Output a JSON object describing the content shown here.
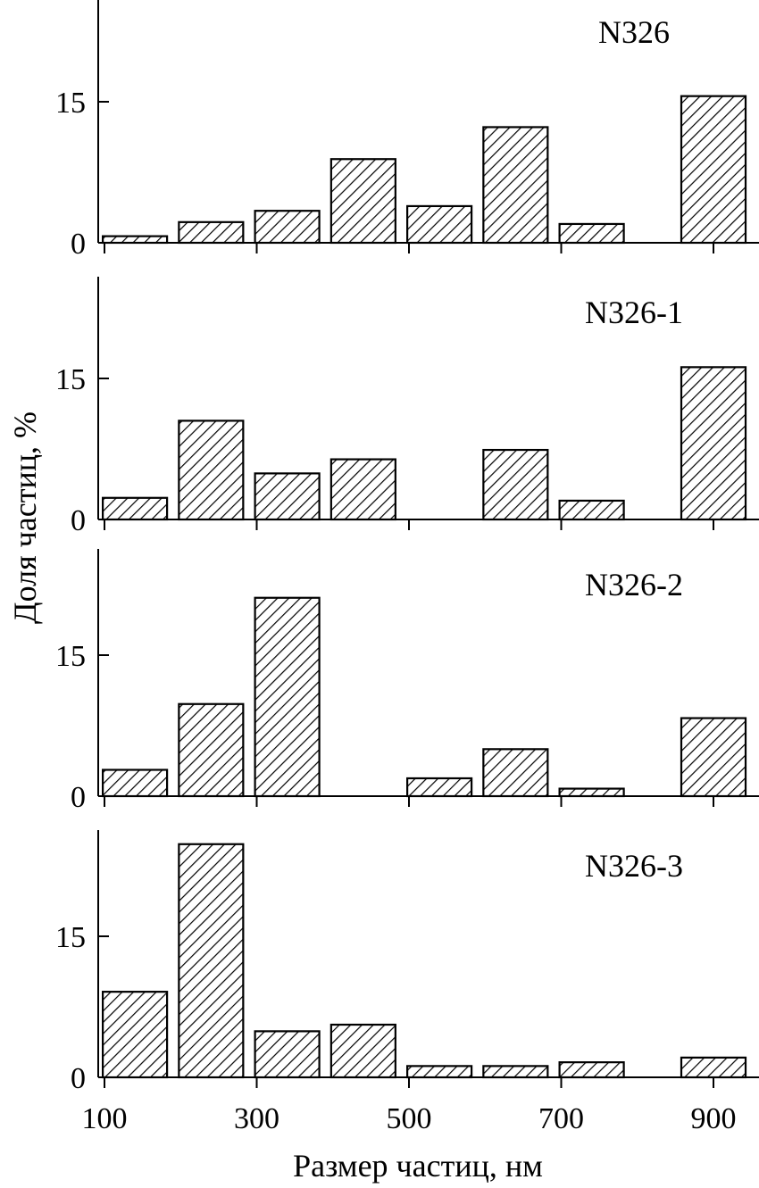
{
  "chart_data": {
    "type": "bar",
    "xlabel": "Размер частиц, нм",
    "ylabel": "Доля частиц, %",
    "x_ticks": [
      100,
      300,
      500,
      700,
      900
    ],
    "x_tick_labels": [
      "100",
      "300",
      "500",
      "700",
      "900"
    ],
    "xlim": [
      100,
      940
    ],
    "y_ticks": [
      0,
      15
    ],
    "y_tick_labels": [
      "0",
      "15"
    ],
    "ylim": [
      0,
      25
    ],
    "bar_centers": [
      140,
      240,
      340,
      440,
      540,
      640,
      740,
      900
    ],
    "panels": [
      {
        "name": "N326",
        "values": [
          0.7,
          2.2,
          3.4,
          8.9,
          3.9,
          12.3,
          2.0,
          15.6
        ]
      },
      {
        "name": "N326-1",
        "values": [
          2.3,
          10.5,
          4.9,
          6.4,
          0,
          7.4,
          2.0,
          16.2
        ]
      },
      {
        "name": "N326-2",
        "values": [
          2.8,
          9.8,
          21.1,
          0,
          1.9,
          5.0,
          0.8,
          8.3
        ]
      },
      {
        "name": "N326-3",
        "values": [
          9.1,
          24.8,
          4.9,
          5.6,
          1.2,
          1.2,
          1.6,
          2.1
        ]
      }
    ]
  }
}
